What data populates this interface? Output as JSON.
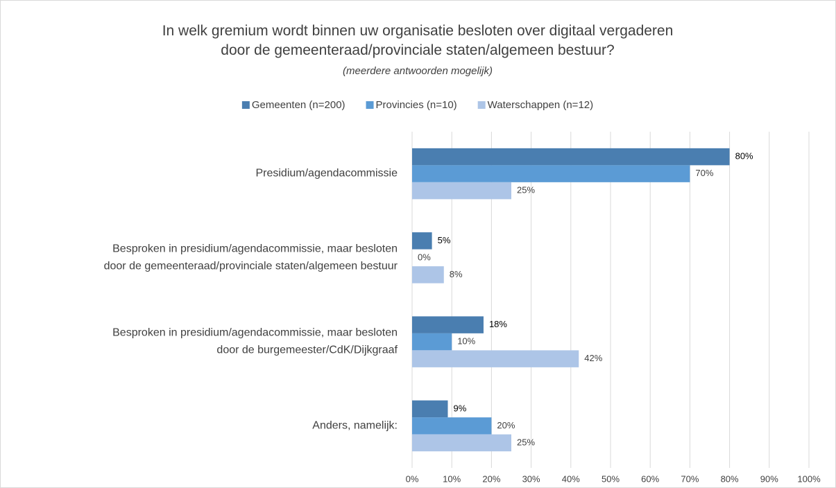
{
  "chart_data": {
    "type": "hbar",
    "title": "In welk gremium wordt binnen uw organisatie besloten over digitaal vergaderen door de gemeenteraad/provinciale staten/algemeen bestuur?",
    "subtitle": "(meerdere antwoorden mogelijk)",
    "categories": [
      "Presidium/agendacommissie",
      "Besproken in presidium/agendacommissie, maar besloten door de gemeenteraad/provinciale staten/algemeen bestuur",
      "Besproken in presidium/agendacommissie, maar besloten door de burgemeester/CdK/Dijkgraaf",
      "Anders, namelijk:"
    ],
    "series": [
      {
        "name": "Gemeenten (n=200)",
        "color": "#4a7eb0",
        "values": [
          80,
          5,
          18,
          9
        ],
        "value_labels": [
          "80%",
          "5%",
          "18%",
          "9%"
        ]
      },
      {
        "name": "Provincies (n=10)",
        "color": "#5b9bd5",
        "values": [
          70,
          0,
          10,
          20
        ],
        "value_labels": [
          "70%",
          "0%",
          "10%",
          "20%"
        ]
      },
      {
        "name": "Waterschappen (n=12)",
        "color": "#adc5e7",
        "values": [
          25,
          8,
          42,
          25
        ],
        "value_labels": [
          "25%",
          "8%",
          "42%",
          "25%"
        ]
      }
    ],
    "xlim": [
      0,
      100
    ],
    "xticks": [
      {
        "value": 0,
        "label": "0%"
      },
      {
        "value": 10,
        "label": "10%"
      },
      {
        "value": 20,
        "label": "20%"
      },
      {
        "value": 30,
        "label": "30%"
      },
      {
        "value": 40,
        "label": "40%"
      },
      {
        "value": 50,
        "label": "50%"
      },
      {
        "value": 60,
        "label": "60%"
      },
      {
        "value": 70,
        "label": "70%"
      },
      {
        "value": 80,
        "label": "80%"
      },
      {
        "value": 90,
        "label": "90%"
      },
      {
        "value": 100,
        "label": "100%"
      }
    ],
    "grid": true,
    "legend": "top"
  }
}
